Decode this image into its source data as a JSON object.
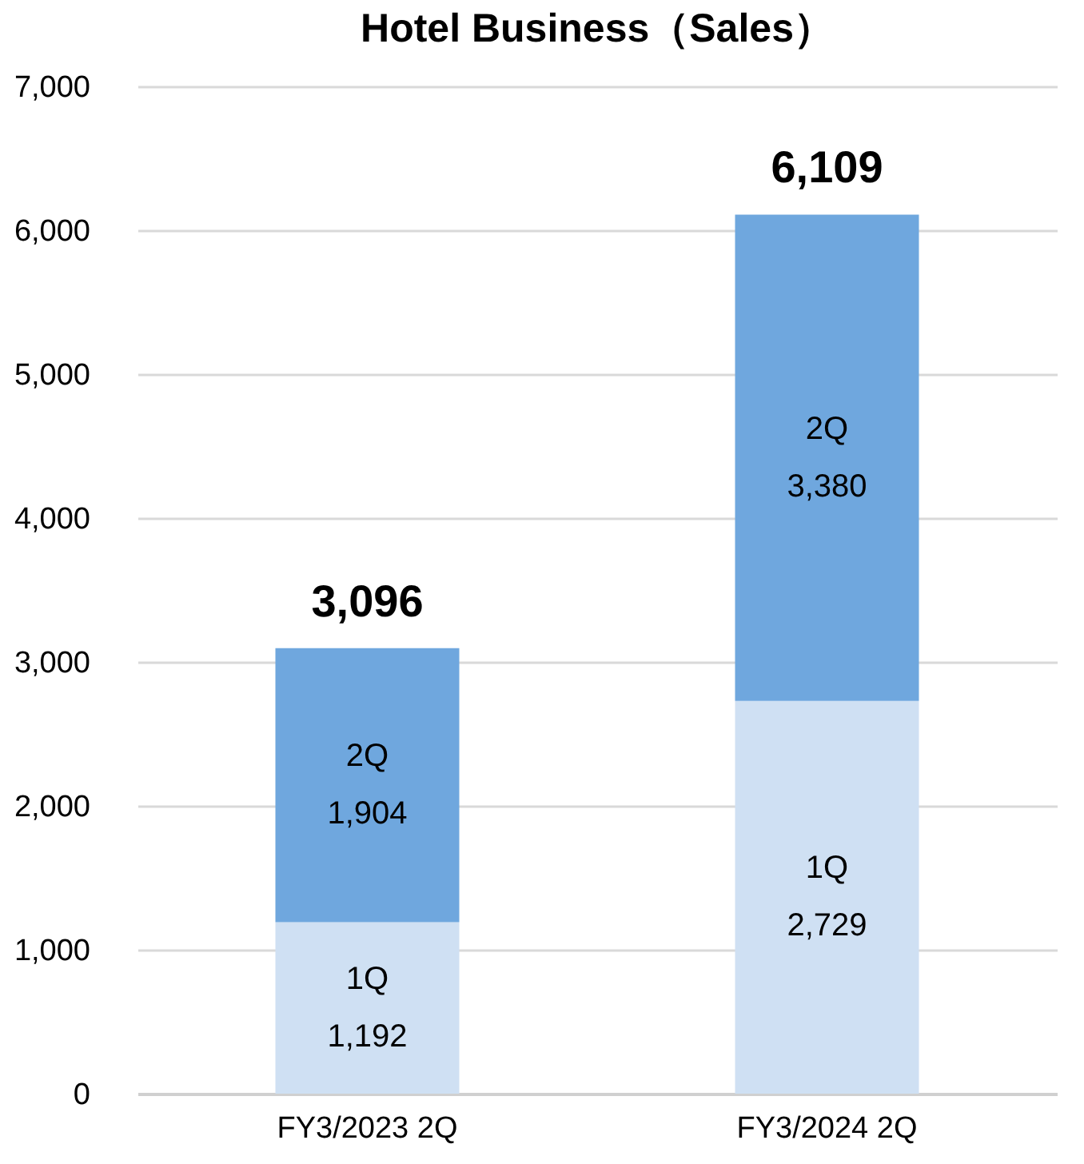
{
  "chart_data": {
    "type": "bar",
    "title": "Hotel Business（Sales）",
    "categories": [
      "FY3/2023 2Q",
      "FY3/2024 2Q"
    ],
    "stacked": true,
    "series": [
      {
        "name": "1Q",
        "color": "#cfe0f3",
        "values": [
          1192,
          2729
        ],
        "value_labels": [
          "1,192",
          "2,729"
        ]
      },
      {
        "name": "2Q",
        "color": "#6fa7de",
        "values": [
          1904,
          3380
        ],
        "value_labels": [
          "1,904",
          "3,380"
        ]
      }
    ],
    "totals": [
      "3,096",
      "6,109"
    ],
    "ylim": [
      0,
      7000
    ],
    "yticks": [
      0,
      {
        "value": 1000,
        "label": "1,000"
      },
      {
        "value": 2000,
        "label": "2,000"
      },
      {
        "value": 3000,
        "label": "3,000"
      },
      {
        "value": 4000,
        "label": "4,000"
      },
      {
        "value": 5000,
        "label": "5,000"
      },
      {
        "value": 6000,
        "label": "6,000"
      },
      {
        "value": 7000,
        "label": "7,000"
      }
    ],
    "grid": "y",
    "legend": false
  }
}
